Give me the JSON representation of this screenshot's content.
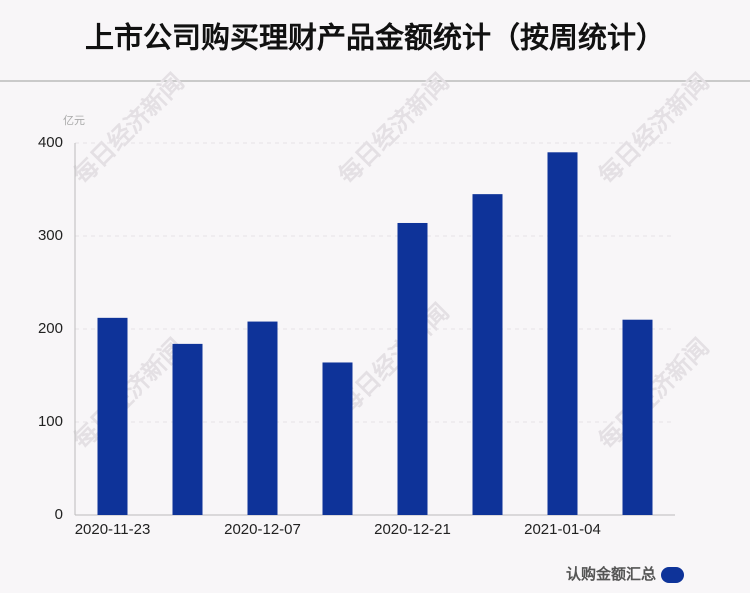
{
  "chart_data": {
    "type": "bar",
    "title": "上市公司购买理财产品金额统计（按周统计）",
    "unit_label": "亿元",
    "watermark": "每日经济新闻",
    "categories": [
      "2020-11-23",
      null,
      "2020-12-07",
      null,
      "2020-12-21",
      null,
      "2021-01-04",
      null
    ],
    "series": [
      {
        "name": "认购金额汇总",
        "color": "#0e3399",
        "values": [
          212,
          184,
          208,
          164,
          314,
          345,
          390,
          210
        ]
      }
    ],
    "ylim": [
      0,
      400
    ],
    "yticks": [
      0,
      100,
      200,
      300,
      400
    ],
    "grid": true,
    "legend": "bottom-right"
  }
}
